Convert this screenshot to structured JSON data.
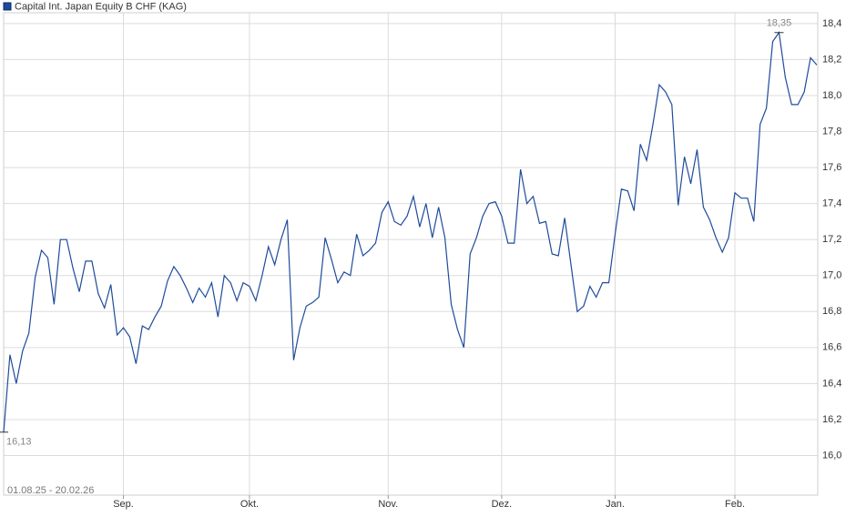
{
  "chart_data": {
    "type": "line",
    "legend": "Capital Int. Japan Equity B CHF (KAG)",
    "period": "01.08.25 - 20.02.26",
    "categories": [
      null,
      null,
      null,
      null,
      null,
      null,
      null,
      null,
      null,
      null,
      null,
      null,
      null,
      null,
      null,
      null,
      null,
      null,
      null,
      "Sep.",
      null,
      null,
      null,
      null,
      null,
      null,
      null,
      null,
      null,
      null,
      null,
      null,
      null,
      null,
      null,
      null,
      null,
      null,
      null,
      "Okt.",
      null,
      null,
      null,
      null,
      null,
      null,
      null,
      null,
      null,
      null,
      null,
      null,
      null,
      null,
      null,
      null,
      null,
      null,
      null,
      null,
      null,
      "Nov.",
      null,
      null,
      null,
      null,
      null,
      null,
      null,
      null,
      null,
      null,
      null,
      null,
      null,
      null,
      null,
      null,
      null,
      "Dez.",
      null,
      null,
      null,
      null,
      null,
      null,
      null,
      null,
      null,
      null,
      null,
      null,
      null,
      null,
      null,
      null,
      null,
      "Jan.",
      null,
      null,
      null,
      null,
      null,
      null,
      null,
      null,
      null,
      null,
      null,
      null,
      null,
      null,
      null,
      null,
      null,
      null,
      "Feb.",
      null,
      null,
      null,
      null,
      null,
      null,
      null,
      null,
      null,
      null,
      null,
      null,
      null
    ],
    "series": [
      {
        "name": "Capital Int. Japan Equity B CHF (KAG)",
        "color": "#1f4b9b",
        "values": [
          16.13,
          16.56,
          16.4,
          16.58,
          16.68,
          16.99,
          17.14,
          17.1,
          16.84,
          17.2,
          17.2,
          17.04,
          16.91,
          17.08,
          17.08,
          16.9,
          16.82,
          16.95,
          16.67,
          16.71,
          16.66,
          16.51,
          16.72,
          16.7,
          16.77,
          16.83,
          16.97,
          17.05,
          17.0,
          16.93,
          16.85,
          16.93,
          16.88,
          16.96,
          16.77,
          17.0,
          16.96,
          16.86,
          16.96,
          16.94,
          16.86,
          17.0,
          17.16,
          17.06,
          17.2,
          17.31,
          16.53,
          16.71,
          16.83,
          16.85,
          16.88,
          17.21,
          17.09,
          16.96,
          17.02,
          17.0,
          17.23,
          17.11,
          17.14,
          17.18,
          17.35,
          17.41,
          17.3,
          17.28,
          17.33,
          17.44,
          17.27,
          17.4,
          17.21,
          17.38,
          17.21,
          16.84,
          16.7,
          16.6,
          17.12,
          17.21,
          17.33,
          17.4,
          17.41,
          17.33,
          17.18,
          17.18,
          17.59,
          17.4,
          17.44,
          17.29,
          17.3,
          17.12,
          17.11,
          17.32,
          17.06,
          16.8,
          16.83,
          16.94,
          16.88,
          16.96,
          16.96,
          17.23,
          17.48,
          17.47,
          17.36,
          17.73,
          17.64,
          17.84,
          18.06,
          18.02,
          17.95,
          17.39,
          17.66,
          17.51,
          17.7,
          17.38,
          17.31,
          17.21,
          17.13,
          17.21,
          17.46,
          17.43,
          17.43,
          17.3,
          17.84,
          17.93,
          18.3,
          18.35,
          18.1,
          17.95,
          17.95,
          18.02,
          18.21,
          18.17
        ],
        "value_labels": [
          "16,13",
          null,
          null,
          null,
          null,
          null,
          null,
          null,
          null,
          null,
          null,
          null,
          null,
          null,
          null,
          null,
          null,
          null,
          null,
          null,
          null,
          null,
          null,
          null,
          null,
          null,
          null,
          null,
          null,
          null,
          null,
          null,
          null,
          null,
          null,
          null,
          null,
          null,
          null,
          null,
          null,
          null,
          null,
          null,
          null,
          null,
          null,
          null,
          null,
          null,
          null,
          null,
          null,
          null,
          null,
          null,
          null,
          null,
          null,
          null,
          null,
          null,
          null,
          null,
          null,
          null,
          null,
          null,
          null,
          null,
          null,
          null,
          null,
          null,
          null,
          null,
          null,
          null,
          null,
          null,
          null,
          null,
          null,
          null,
          null,
          null,
          null,
          null,
          null,
          null,
          null,
          null,
          null,
          null,
          null,
          null,
          null,
          null,
          null,
          null,
          null,
          null,
          null,
          null,
          null,
          null,
          null,
          null,
          null,
          null,
          null,
          null,
          null,
          null,
          null,
          null,
          null,
          null,
          null,
          null,
          null,
          null,
          null,
          "18,35",
          null,
          null,
          null,
          null,
          null,
          null
        ]
      }
    ],
    "ylim": [
      15.78,
      18.46
    ],
    "yticks": [
      {
        "value": 16.0,
        "label": "16,0"
      },
      {
        "value": 16.2,
        "label": "16,2"
      },
      {
        "value": 16.4,
        "label": "16,4"
      },
      {
        "value": 16.6,
        "label": "16,6"
      },
      {
        "value": 16.8,
        "label": "16,8"
      },
      {
        "value": 17.0,
        "label": "17,0"
      },
      {
        "value": 17.2,
        "label": "17,2"
      },
      {
        "value": 17.4,
        "label": "17,4"
      },
      {
        "value": 17.6,
        "label": "17,6"
      },
      {
        "value": 17.8,
        "label": "17,8"
      },
      {
        "value": 18.0,
        "label": "18,0"
      },
      {
        "value": 18.2,
        "label": "18,2"
      },
      {
        "value": 18.4,
        "label": "18,4"
      }
    ],
    "grid": true
  }
}
